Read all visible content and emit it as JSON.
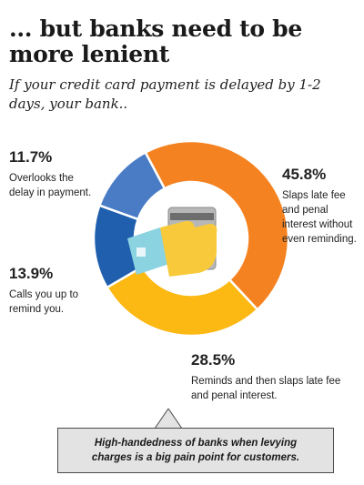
{
  "header": {
    "title": "... but banks need to be more lenient",
    "subtitle": "If your credit card payment is delayed by 1-2 days, your bank.."
  },
  "chart_data": {
    "type": "pie",
    "variant": "donut",
    "title": "... but banks need to be more lenient",
    "subtitle": "If your credit card payment is delayed by 1-2 days, your bank..",
    "categories": [
      "Slaps late fee and penal interest without even reminding.",
      "Reminds and then slaps late fee and penal interest.",
      "Calls you up to remind you.",
      "Overlooks the delay in payment."
    ],
    "values": [
      45.8,
      28.5,
      13.9,
      11.7
    ],
    "value_labels": [
      "45.8%",
      "28.5%",
      "13.9%",
      "11.7%"
    ],
    "colors": [
      "#f58220",
      "#fcb813",
      "#1f5fae",
      "#4a7cc6"
    ],
    "legend": "none",
    "center_icon": "credit-card-in-hand-icon"
  },
  "callout": {
    "text": "High-handedness of banks when levying charges is a big pain point for customers."
  }
}
